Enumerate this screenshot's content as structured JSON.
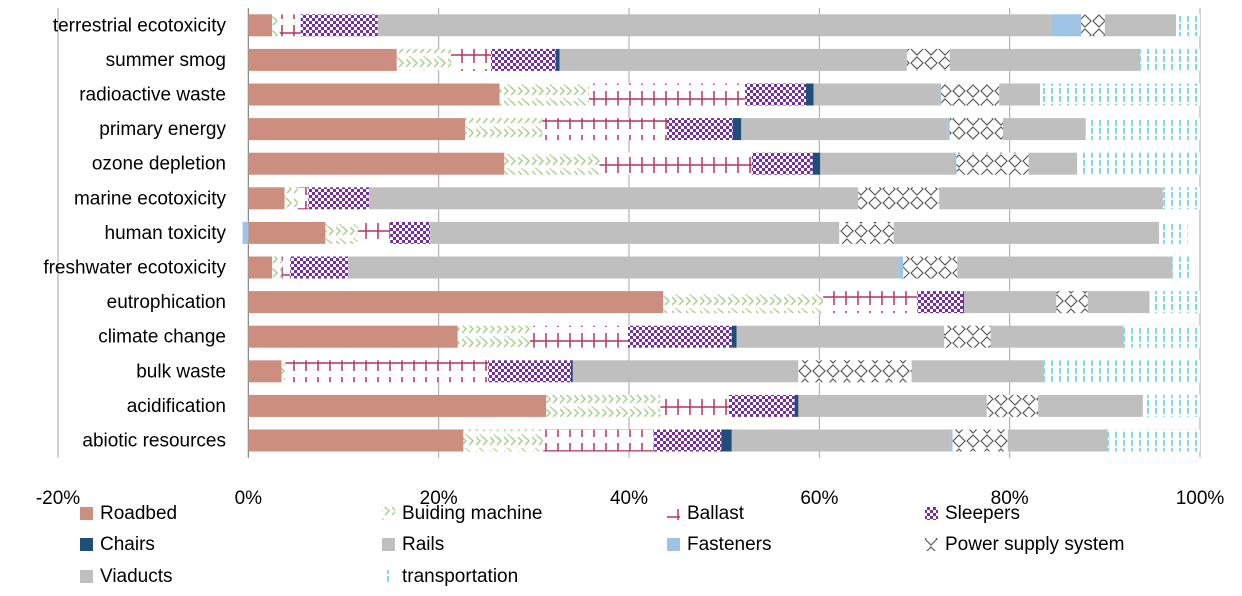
{
  "chart_data": {
    "type": "bar",
    "orientation": "horizontal",
    "stacked": true,
    "percent": true,
    "title": "",
    "xlabel": "",
    "ylabel": "",
    "xlim": [
      -20,
      100
    ],
    "x_ticks": [
      -20,
      0,
      20,
      40,
      60,
      80,
      100
    ],
    "x_tick_labels": [
      "-20%",
      "0%",
      "20%",
      "40%",
      "60%",
      "80%",
      "100%"
    ],
    "grid": "vertical",
    "legend_position": "bottom",
    "categories": [
      "terrestrial ecotoxicity",
      "summer smog",
      "radioactive waste",
      "primary energy",
      "ozone depletion",
      "marine ecotoxicity",
      "human toxicity",
      "freshwater ecotoxicity",
      "eutrophication",
      "climate change",
      "bulk waste",
      "acidification",
      "abiotic resources"
    ],
    "series": [
      {
        "name": "Roadbed",
        "color": "#cc8f7f",
        "pattern": "solid",
        "values": [
          2.5,
          15.6,
          26.4,
          22.8,
          26.9,
          3.8,
          8.1,
          2.5,
          43.6,
          22.0,
          3.5,
          31.3,
          22.6
        ]
      },
      {
        "name": "Buiding machine",
        "color": "#a9d18e",
        "pattern": "zigzag",
        "values": [
          0.8,
          5.7,
          9.4,
          8.1,
          10.0,
          1.4,
          3.4,
          1.0,
          16.8,
          7.6,
          0.4,
          12.0,
          8.4
        ]
      },
      {
        "name": "Ballast",
        "color": "#b5325e",
        "pattern": "cross",
        "values": [
          2.2,
          4.2,
          16.4,
          13.1,
          16.0,
          1.1,
          3.4,
          0.9,
          9.9,
          10.3,
          21.3,
          7.2,
          11.6
        ]
      },
      {
        "name": "Sleepers",
        "color": "#7030a0",
        "pattern": "checker",
        "values": [
          8.1,
          6.8,
          6.4,
          6.9,
          6.4,
          6.4,
          4.2,
          6.1,
          4.8,
          10.9,
          8.7,
          6.9,
          7.1
        ]
      },
      {
        "name": "Chairs",
        "color": "#1f4e79",
        "pattern": "solid",
        "values": [
          0.0,
          0.4,
          0.8,
          0.9,
          0.8,
          0.0,
          0.0,
          0.0,
          0.1,
          0.5,
          0.2,
          0.4,
          1.1
        ]
      },
      {
        "name": "Rails",
        "color": "#bfbfbf",
        "pattern": "solid",
        "values": [
          70.8,
          36.5,
          13.2,
          21.7,
          14.1,
          51.4,
          43.0,
          57.8,
          9.7,
          21.8,
          23.7,
          19.8,
          23.0
        ]
      },
      {
        "name": "Fasteners",
        "color": "#9dc3e6",
        "pattern": "solid",
        "values": [
          3.1,
          0.0,
          0.2,
          0.2,
          0.2,
          0.0,
          0.0,
          0.5,
          0.0,
          0.0,
          0.0,
          0.0,
          0.2
        ]
      },
      {
        "name": "Power supply system",
        "color": "#7f7f7f",
        "pattern": "diamond",
        "values": [
          2.5,
          4.5,
          6.1,
          5.6,
          7.6,
          8.5,
          5.7,
          5.7,
          3.3,
          4.9,
          11.9,
          5.4,
          5.8
        ]
      },
      {
        "name": "Viaducts",
        "color": "#bfbfbf",
        "pattern": "solid",
        "values": [
          7.5,
          20.0,
          4.3,
          8.7,
          5.1,
          23.5,
          27.9,
          22.6,
          6.5,
          14.0,
          13.9,
          11.0,
          10.5
        ]
      },
      {
        "name": "transportation",
        "color": "#5ed3e6",
        "pattern": "vlines",
        "values": [
          2.5,
          6.3,
          16.8,
          12.0,
          12.9,
          3.9,
          3.0,
          2.4,
          5.3,
          8.0,
          16.4,
          6.0,
          9.7
        ]
      }
    ],
    "negative_values": {
      "Fasteners": {
        "human toxicity": -0.6
      }
    }
  }
}
